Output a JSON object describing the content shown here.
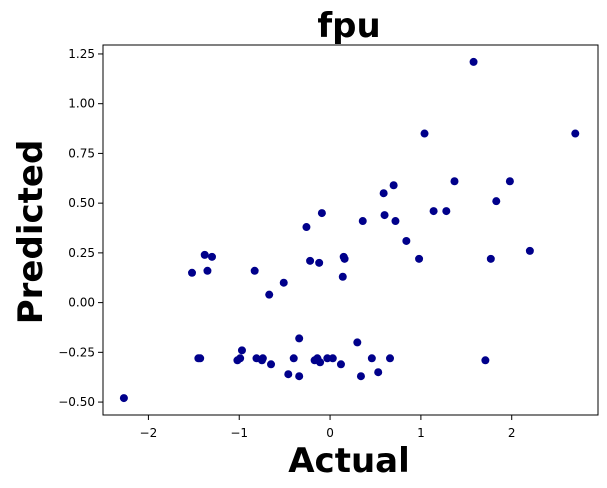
{
  "chart_data": {
    "type": "scatter",
    "title": "fpu",
    "xlabel": "Actual",
    "ylabel": "Predicted",
    "xlim": [
      -2.5,
      2.95
    ],
    "ylim": [
      -0.565,
      1.295
    ],
    "xticks": [
      -2,
      -1,
      0,
      1,
      2
    ],
    "yticks": [
      -0.5,
      -0.25,
      0.0,
      0.25,
      0.5,
      0.75,
      1.0,
      1.25
    ],
    "xtick_labels": [
      "−2",
      "−1",
      "0",
      "1",
      "2"
    ],
    "ytick_labels": [
      "−0.50",
      "−0.25",
      "0.00",
      "0.25",
      "0.50",
      "0.75",
      "1.00",
      "1.25"
    ],
    "grid": false,
    "point_color": "#00008b",
    "points": [
      {
        "x": -2.27,
        "y": -0.48
      },
      {
        "x": -1.52,
        "y": 0.15
      },
      {
        "x": -1.45,
        "y": -0.28
      },
      {
        "x": -1.43,
        "y": -0.28
      },
      {
        "x": -1.38,
        "y": 0.24
      },
      {
        "x": -1.35,
        "y": 0.16
      },
      {
        "x": -1.3,
        "y": 0.23
      },
      {
        "x": -1.02,
        "y": -0.29
      },
      {
        "x": -0.99,
        "y": -0.28
      },
      {
        "x": -0.97,
        "y": -0.24
      },
      {
        "x": -0.83,
        "y": 0.16
      },
      {
        "x": -0.81,
        "y": -0.28
      },
      {
        "x": -0.75,
        "y": -0.29
      },
      {
        "x": -0.74,
        "y": -0.28
      },
      {
        "x": -0.67,
        "y": 0.04
      },
      {
        "x": -0.65,
        "y": -0.31
      },
      {
        "x": -0.51,
        "y": 0.1
      },
      {
        "x": -0.46,
        "y": -0.36
      },
      {
        "x": -0.4,
        "y": -0.28
      },
      {
        "x": -0.34,
        "y": -0.18
      },
      {
        "x": -0.34,
        "y": -0.37
      },
      {
        "x": -0.26,
        "y": 0.38
      },
      {
        "x": -0.22,
        "y": 0.21
      },
      {
        "x": -0.17,
        "y": -0.29
      },
      {
        "x": -0.14,
        "y": -0.28
      },
      {
        "x": -0.12,
        "y": 0.2
      },
      {
        "x": -0.11,
        "y": -0.3
      },
      {
        "x": -0.09,
        "y": 0.45
      },
      {
        "x": -0.03,
        "y": -0.28
      },
      {
        "x": 0.03,
        "y": -0.28
      },
      {
        "x": 0.12,
        "y": -0.31
      },
      {
        "x": 0.14,
        "y": 0.13
      },
      {
        "x": 0.15,
        "y": 0.23
      },
      {
        "x": 0.16,
        "y": 0.22
      },
      {
        "x": 0.3,
        "y": -0.2
      },
      {
        "x": 0.34,
        "y": -0.37
      },
      {
        "x": 0.36,
        "y": 0.41
      },
      {
        "x": 0.46,
        "y": -0.28
      },
      {
        "x": 0.53,
        "y": -0.35
      },
      {
        "x": 0.59,
        "y": 0.55
      },
      {
        "x": 0.6,
        "y": 0.44
      },
      {
        "x": 0.66,
        "y": -0.28
      },
      {
        "x": 0.7,
        "y": 0.59
      },
      {
        "x": 0.72,
        "y": 0.41
      },
      {
        "x": 0.84,
        "y": 0.31
      },
      {
        "x": 0.98,
        "y": 0.22
      },
      {
        "x": 1.04,
        "y": 0.85
      },
      {
        "x": 1.14,
        "y": 0.46
      },
      {
        "x": 1.28,
        "y": 0.46
      },
      {
        "x": 1.37,
        "y": 0.61
      },
      {
        "x": 1.58,
        "y": 1.21
      },
      {
        "x": 1.71,
        "y": -0.29
      },
      {
        "x": 1.77,
        "y": 0.22
      },
      {
        "x": 1.83,
        "y": 0.51
      },
      {
        "x": 1.98,
        "y": 0.61
      },
      {
        "x": 2.2,
        "y": 0.26
      },
      {
        "x": 2.7,
        "y": 0.85
      }
    ]
  }
}
